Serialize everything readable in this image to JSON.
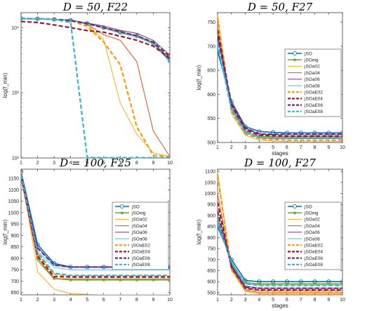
{
  "styles": {
    "jSO": {
      "color": "#0072BD",
      "dash": "",
      "width": 1.6,
      "marker": "circle"
    },
    "jSOeig": {
      "color": "#77AC30",
      "dash": "",
      "width": 1.6,
      "marker": "dot"
    },
    "jSOa02": {
      "color": "#EDB120",
      "dash": "",
      "width": 1.0,
      "marker": ""
    },
    "jSOa04": {
      "color": "#D95319",
      "dash": "",
      "width": 1.0,
      "marker": ""
    },
    "jSOa06": {
      "color": "#7E2F8E",
      "dash": "",
      "width": 1.0,
      "marker": ""
    },
    "jSOa08": {
      "color": "#4DBEEE",
      "dash": "",
      "width": 1.0,
      "marker": ""
    },
    "jSOaE02": {
      "color": "#FF9900",
      "dash": "6,3",
      "width": 2.2,
      "marker": ""
    },
    "jSOaE04": {
      "color": "#A2142F",
      "dash": "6,3",
      "width": 2.2,
      "marker": ""
    },
    "jSOaE06": {
      "color": "#6B2A86",
      "dash": "6,3",
      "width": 2.2,
      "marker": ""
    },
    "jSOaE08": {
      "color": "#33B5D6",
      "dash": "6,3",
      "width": 2.2,
      "marker": ""
    }
  },
  "chart_data": [
    {
      "type": "line",
      "title": "D = 50, F22",
      "xlabel": "",
      "ylabel": "log(f_min)",
      "yscale": "log",
      "ylim": [
        100,
        17000
      ],
      "xlim": [
        1,
        10
      ],
      "yticks": [
        100,
        1000,
        10000
      ],
      "yticklabels": [
        "10²",
        "10³",
        "10⁴"
      ],
      "legend": "none",
      "x": [
        1,
        2,
        3,
        4,
        5,
        6,
        7,
        8,
        9,
        10
      ],
      "series": [
        {
          "name": "jSO",
          "values": [
            13800,
            13700,
            13400,
            13000,
            11600,
            10000,
            8500,
            7500,
            5800,
            3100
          ]
        },
        {
          "name": "jSOeig",
          "values": [
            13800,
            13700,
            13400,
            13000,
            11700,
            10100,
            8600,
            7600,
            5900,
            3300
          ]
        },
        {
          "name": "jSOa02",
          "values": [
            13800,
            13700,
            13400,
            13000,
            11200,
            6500,
            700,
            230,
            120,
            105
          ]
        },
        {
          "name": "jSOa04",
          "values": [
            13800,
            13700,
            13400,
            13000,
            11300,
            7800,
            6400,
            3000,
            260,
            105
          ]
        },
        {
          "name": "jSOa06",
          "values": [
            13800,
            13700,
            13400,
            13000,
            11800,
            10600,
            9100,
            8200,
            6400,
            3800
          ]
        },
        {
          "name": "jSOa08",
          "values": [
            13800,
            13700,
            13400,
            13000,
            11500,
            9800,
            8200,
            7200,
            5600,
            3000
          ]
        },
        {
          "name": "jSOaE02",
          "values": [
            13800,
            13700,
            13400,
            12800,
            10500,
            6000,
            2700,
            300,
            110,
            105
          ]
        },
        {
          "name": "jSOaE04",
          "values": [
            12400,
            12000,
            11000,
            10000,
            9000,
            8500,
            7400,
            6400,
            5200,
            3400
          ]
        },
        {
          "name": "jSOaE06",
          "values": [
            13800,
            13700,
            13400,
            12900,
            11500,
            10000,
            8700,
            7500,
            6000,
            3600
          ]
        },
        {
          "name": "jSOaE08",
          "values": [
            13800,
            13700,
            13400,
            12000,
            102,
            101,
            101,
            101,
            101,
            101
          ]
        }
      ]
    },
    {
      "type": "line",
      "title": "D = 50, F27",
      "xlabel": "stages",
      "ylabel": "log(f_min)",
      "ylim": [
        500,
        770
      ],
      "xlim": [
        1,
        10
      ],
      "yticks": [
        500,
        550,
        600,
        650,
        700,
        750
      ],
      "yticklabels": [
        "500",
        "550",
        "600",
        "650",
        "700",
        "750"
      ],
      "legend": "top-right",
      "x": [
        1,
        2,
        3,
        4,
        5,
        6,
        7,
        8,
        9,
        10
      ],
      "series": [
        {
          "name": "jSO",
          "values": [
            690,
            585,
            533,
            523,
            521,
            520,
            520,
            520,
            520,
            520
          ]
        },
        {
          "name": "jSOeig",
          "values": [
            725,
            570,
            522,
            513,
            512,
            512,
            512,
            512,
            512,
            512
          ]
        },
        {
          "name": "jSOa02",
          "values": [
            765,
            560,
            515,
            505,
            503,
            502,
            502,
            502,
            502,
            502
          ]
        },
        {
          "name": "jSOa04",
          "values": [
            740,
            575,
            525,
            510,
            508,
            508,
            508,
            508,
            508,
            508
          ]
        },
        {
          "name": "jSOa06",
          "values": [
            718,
            580,
            530,
            518,
            516,
            516,
            516,
            516,
            516,
            516
          ]
        },
        {
          "name": "jSOa08",
          "values": [
            700,
            572,
            523,
            511,
            510,
            510,
            510,
            510,
            510,
            510
          ]
        },
        {
          "name": "jSOaE02",
          "values": [
            760,
            565,
            518,
            508,
            506,
            505,
            505,
            505,
            505,
            505
          ]
        },
        {
          "name": "jSOaE04",
          "values": [
            735,
            577,
            527,
            515,
            514,
            513,
            513,
            513,
            513,
            513
          ]
        },
        {
          "name": "jSOaE06",
          "values": [
            720,
            582,
            530,
            518,
            517,
            517,
            517,
            517,
            517,
            517
          ]
        },
        {
          "name": "jSOaE08",
          "values": [
            705,
            568,
            520,
            510,
            509,
            509,
            509,
            509,
            509,
            509
          ]
        }
      ]
    },
    {
      "type": "line",
      "title": "D = 100, F25",
      "xlabel": "",
      "ylabel": "log(f_min)",
      "ylim": [
        640,
        1190
      ],
      "xlim": [
        1,
        10
      ],
      "yticks": [
        650,
        700,
        750,
        800,
        850,
        900,
        950,
        1000,
        1050,
        1100,
        1150
      ],
      "yticklabels": [
        "650",
        "700",
        "750",
        "800",
        "850",
        "900",
        "950",
        "1000",
        "1050",
        "1100",
        "1150"
      ],
      "legend": "right",
      "x": [
        1,
        2,
        3,
        4,
        5,
        6,
        7,
        8,
        9,
        10
      ],
      "series": [
        {
          "name": "jSO",
          "values": [
            1180,
            860,
            778,
            762,
            762,
            762,
            762,
            762,
            762,
            762
          ]
        },
        {
          "name": "jSOeig",
          "values": [
            1180,
            800,
            712,
            705,
            705,
            705,
            705,
            705,
            705,
            705
          ]
        },
        {
          "name": "jSOa02",
          "values": [
            1180,
            740,
            665,
            645,
            642,
            640,
            640,
            640,
            640,
            640
          ]
        },
        {
          "name": "jSOa04",
          "values": [
            1150,
            790,
            710,
            710,
            710,
            710,
            710,
            710,
            710,
            710
          ]
        },
        {
          "name": "jSOa06",
          "values": [
            1170,
            850,
            770,
            760,
            760,
            760,
            760,
            760,
            760,
            760
          ]
        },
        {
          "name": "jSOa08",
          "values": [
            1160,
            830,
            760,
            750,
            750,
            750,
            750,
            750,
            750,
            750
          ]
        },
        {
          "name": "jSOaE02",
          "values": [
            1170,
            820,
            730,
            722,
            722,
            722,
            722,
            722,
            722,
            722
          ]
        },
        {
          "name": "jSOaE04",
          "values": [
            1160,
            810,
            720,
            718,
            718,
            718,
            718,
            718,
            718,
            718
          ]
        },
        {
          "name": "jSOaE06",
          "values": [
            1170,
            845,
            770,
            762,
            762,
            762,
            762,
            762,
            762,
            762
          ]
        },
        {
          "name": "jSOaE08",
          "values": [
            1165,
            825,
            735,
            725,
            725,
            725,
            725,
            725,
            725,
            725
          ]
        }
      ]
    },
    {
      "type": "line",
      "title": "D = 100, F27",
      "xlabel": "stages",
      "ylabel": "log(f_min)",
      "ylim": [
        540,
        1110
      ],
      "xlim": [
        1,
        10
      ],
      "yticks": [
        550,
        600,
        650,
        700,
        750,
        800,
        850,
        900,
        950,
        1000,
        1050,
        1100
      ],
      "yticklabels": [
        "550",
        "600",
        "650",
        "700",
        "750",
        "800",
        "850",
        "900",
        "950",
        "1000",
        "1050",
        "1100"
      ],
      "legend": "right",
      "x": [
        1,
        2,
        3,
        4,
        5,
        6,
        7,
        8,
        9,
        10
      ],
      "series": [
        {
          "name": "jSO",
          "values": [
            850,
            700,
            605,
            600,
            600,
            600,
            600,
            600,
            600,
            600
          ]
        },
        {
          "name": "jSOeig",
          "values": [
            900,
            680,
            595,
            590,
            590,
            590,
            590,
            590,
            590,
            590
          ]
        },
        {
          "name": "jSOa02",
          "values": [
            1100,
            650,
            555,
            545,
            545,
            545,
            545,
            545,
            545,
            545
          ]
        },
        {
          "name": "jSOa04",
          "values": [
            1000,
            660,
            560,
            550,
            550,
            550,
            550,
            550,
            550,
            550
          ]
        },
        {
          "name": "jSOa06",
          "values": [
            880,
            675,
            580,
            570,
            570,
            570,
            570,
            570,
            570,
            570
          ]
        },
        {
          "name": "jSOa08",
          "values": [
            860,
            690,
            590,
            585,
            585,
            585,
            585,
            585,
            585,
            585
          ]
        },
        {
          "name": "jSOaE02",
          "values": [
            1080,
            655,
            565,
            558,
            558,
            558,
            558,
            558,
            558,
            558
          ]
        },
        {
          "name": "jSOaE04",
          "values": [
            960,
            665,
            570,
            562,
            562,
            562,
            562,
            562,
            562,
            562
          ]
        },
        {
          "name": "jSOaE06",
          "values": [
            920,
            670,
            575,
            570,
            570,
            570,
            570,
            570,
            570,
            570
          ]
        },
        {
          "name": "jSOaE08",
          "values": [
            870,
            685,
            590,
            583,
            583,
            583,
            583,
            583,
            583,
            583
          ]
        }
      ]
    }
  ]
}
